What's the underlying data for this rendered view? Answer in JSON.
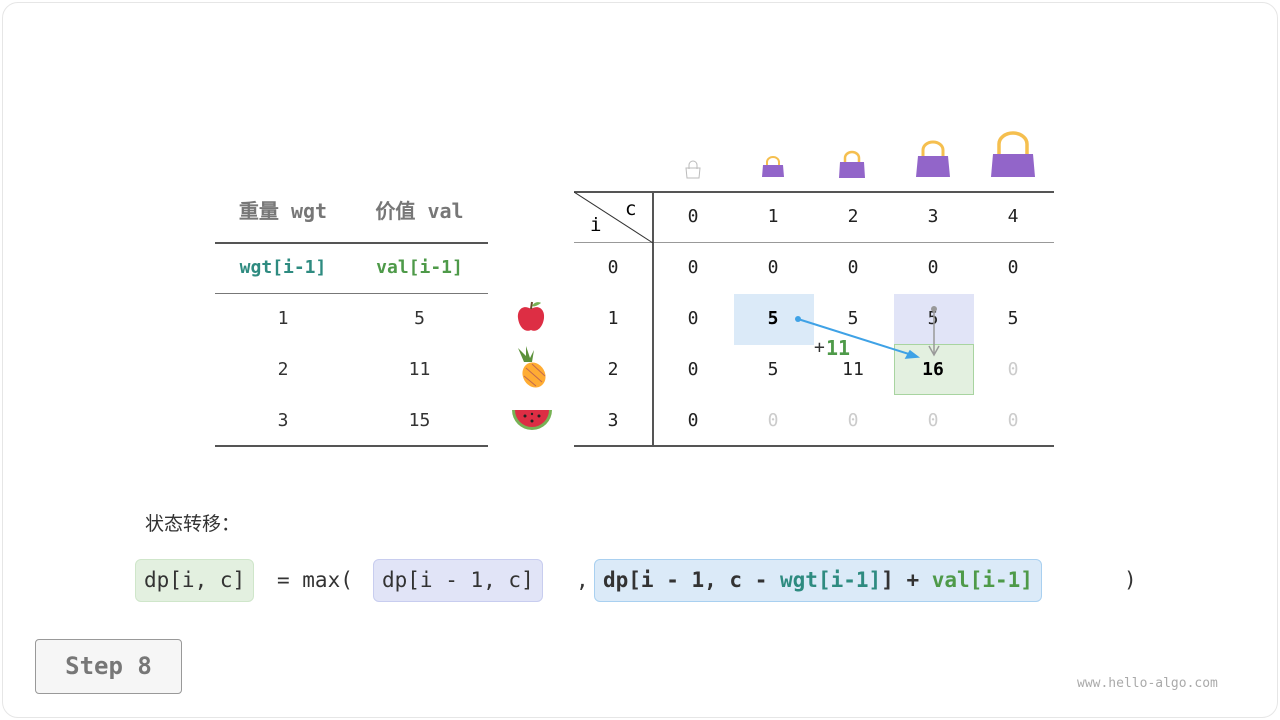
{
  "left_table": {
    "headers": [
      "重量 wgt",
      "价值 val"
    ],
    "subheaders": [
      "wgt[i-1]",
      "val[i-1]"
    ],
    "rows": [
      [
        "1",
        "5"
      ],
      [
        "2",
        "11"
      ],
      [
        "3",
        "15"
      ]
    ]
  },
  "items": [
    "apple-icon",
    "pineapple-icon",
    "watermelon-icon"
  ],
  "dp_table": {
    "corner_row": "i",
    "corner_col": "c",
    "col_headers": [
      "0",
      "1",
      "2",
      "3",
      "4"
    ],
    "row_headers": [
      "0",
      "1",
      "2",
      "3"
    ],
    "rows": [
      [
        "0",
        "0",
        "0",
        "0",
        "0"
      ],
      [
        "0",
        "5",
        "5",
        "5",
        "5"
      ],
      [
        "0",
        "5",
        "11",
        "16",
        "0"
      ],
      [
        "0",
        "0",
        "0",
        "0",
        "0"
      ]
    ],
    "annotation": {
      "plus": "+",
      "value": "11"
    }
  },
  "formula": {
    "label": "状态转移：",
    "lhs": "dp[i, c]",
    "eq_max": "= max(",
    "arg1": "dp[i - 1, c]",
    "comma": ",",
    "arg2_a": "dp[i - 1, c - ",
    "arg2_wgt": "wgt[i-1]",
    "arg2_b": "] + ",
    "arg2_val": "val[i-1]",
    "close": ")"
  },
  "step_button": "Step 8",
  "watermark": "www.hello-algo.com",
  "colors": {
    "wgt": "#2e8b80",
    "val": "#4e9a49",
    "bag": "#9265c9",
    "handle": "#f5bf4f",
    "blue_cell": "#dbeaf8",
    "purple_cell": "#e1e4f7",
    "green_cell": "#e3f0e0",
    "arrow": "#3fa2e6"
  }
}
